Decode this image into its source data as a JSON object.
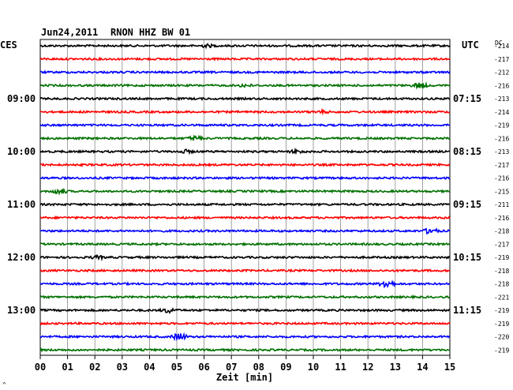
{
  "header": {
    "date": "Jun24,2011",
    "station": "RNON HHZ BW 01",
    "left_tz": "CES",
    "right_tz": "UTC",
    "dc_label": "DC"
  },
  "footer": {
    "xlabel": "Zeit [min]",
    "corner_mark": "^"
  },
  "chart_data": {
    "type": "line",
    "title": "Jun24,2011   RNON HHZ BW 01",
    "xlabel": "Zeit [min]",
    "xlim": [
      0,
      15
    ],
    "x_ticks": [
      "00",
      "01",
      "02",
      "03",
      "04",
      "05",
      "06",
      "07",
      "08",
      "09",
      "10",
      "11",
      "12",
      "13",
      "14",
      "15"
    ],
    "grid": true,
    "trace_colors": [
      "#000000",
      "#ff0000",
      "#0000ff",
      "#007000"
    ],
    "left_time_labels": [
      {
        "row": 4,
        "text": "09:00"
      },
      {
        "row": 8,
        "text": "10:00"
      },
      {
        "row": 12,
        "text": "11:00"
      },
      {
        "row": 16,
        "text": "12:00"
      },
      {
        "row": 20,
        "text": "13:00"
      }
    ],
    "right_time_labels": [
      {
        "row": 4,
        "text": "07:15"
      },
      {
        "row": 8,
        "text": "08:15"
      },
      {
        "row": 12,
        "text": "09:15"
      },
      {
        "row": 16,
        "text": "10:15"
      },
      {
        "row": 20,
        "text": "11:15"
      }
    ],
    "dc_offsets": [
      "-214",
      "-217",
      "-212",
      "-216",
      "-213",
      "-214",
      "-219",
      "-216",
      "-213",
      "-217",
      "-216",
      "-215",
      "-211",
      "-216",
      "-218",
      "-217",
      "-219",
      "-218",
      "-218",
      "-221",
      "-219",
      "-219",
      "-220",
      "-219"
    ],
    "events": [
      {
        "row": 0,
        "minute": 6.1,
        "amp": 1.5
      },
      {
        "row": 3,
        "minute": 7.5,
        "amp": 1.6
      },
      {
        "row": 3,
        "minute": 13.9,
        "amp": 3.2
      },
      {
        "row": 5,
        "minute": 10.3,
        "amp": 1.4
      },
      {
        "row": 7,
        "minute": 5.7,
        "amp": 2.8
      },
      {
        "row": 8,
        "minute": 5.3,
        "amp": 1.8
      },
      {
        "row": 8,
        "minute": 9.4,
        "amp": 2.0
      },
      {
        "row": 11,
        "minute": 0.7,
        "amp": 3.4
      },
      {
        "row": 14,
        "minute": 14.3,
        "amp": 3.6
      },
      {
        "row": 16,
        "minute": 2.1,
        "amp": 1.6
      },
      {
        "row": 18,
        "minute": 12.7,
        "amp": 5.5
      },
      {
        "row": 20,
        "minute": 4.7,
        "amp": 2.8
      },
      {
        "row": 22,
        "minute": 5.1,
        "amp": 4.5
      }
    ]
  }
}
